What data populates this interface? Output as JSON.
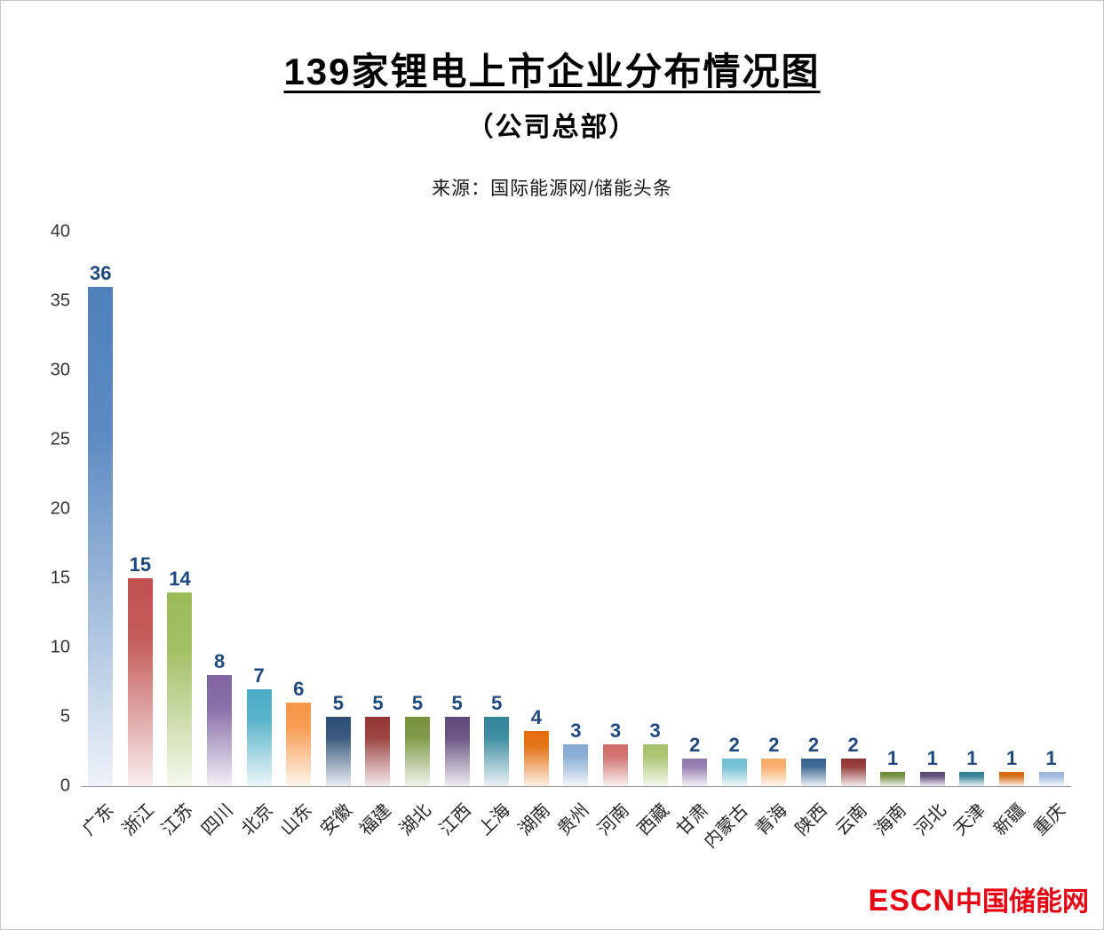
{
  "chart_data": {
    "type": "bar",
    "title": "139家锂电上市企业分布情况图",
    "subtitle": "（公司总部）",
    "source": "来源：国际能源网/储能头条",
    "categories": [
      "广东",
      "浙江",
      "江苏",
      "四川",
      "北京",
      "山东",
      "安徽",
      "福建",
      "湖北",
      "江西",
      "上海",
      "湖南",
      "贵州",
      "河南",
      "西藏",
      "甘肃",
      "内蒙古",
      "青海",
      "陕西",
      "云南",
      "海南",
      "河北",
      "天津",
      "新疆",
      "重庆"
    ],
    "values": [
      36,
      15,
      14,
      8,
      7,
      6,
      5,
      5,
      5,
      5,
      5,
      4,
      3,
      3,
      3,
      2,
      2,
      2,
      2,
      2,
      1,
      1,
      1,
      1,
      1
    ],
    "bar_colors": [
      "#4F81BD",
      "#C0504D",
      "#9BBB59",
      "#8064A2",
      "#4BACC6",
      "#F79646",
      "#2C4D75",
      "#943634",
      "#76923C",
      "#5F497A",
      "#31859B",
      "#E36C09",
      "#84A9D1",
      "#CE6B68",
      "#A5C16A",
      "#8F77AD",
      "#6FBDD1",
      "#F8A964",
      "#36608F",
      "#8F3331",
      "#6E8A38",
      "#584573",
      "#2E7C91",
      "#D4660A",
      "#9AB5DB"
    ],
    "ylim": [
      0,
      40
    ],
    "yticks": [
      0,
      5,
      10,
      15,
      20,
      25,
      30,
      35,
      40
    ],
    "grid": false,
    "legend": "none",
    "value_label_color": "#1F497D",
    "total": 139
  },
  "footer": {
    "logo_en": "ESCN",
    "logo_cn": "中国储能网",
    "logo_color": "#E60012"
  }
}
